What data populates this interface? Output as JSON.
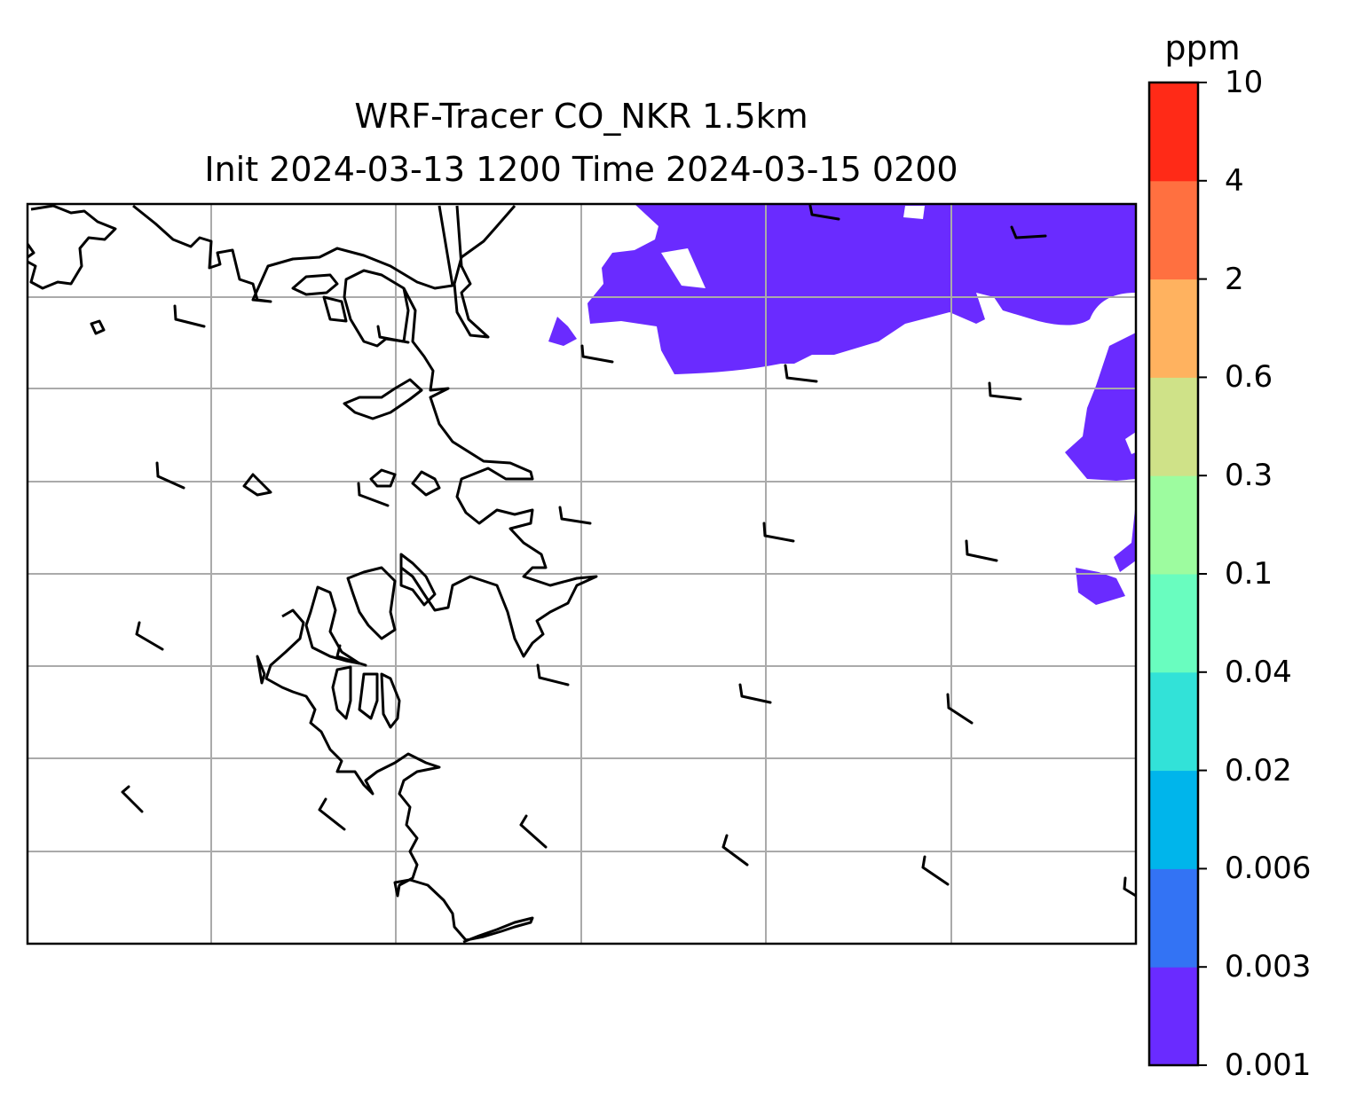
{
  "map": {
    "title_line1": "WRF-Tracer CO_NKR 1.5km",
    "title_line2": "Init 2024-03-13 1200 Time 2024-03-15 0200",
    "gridlines": true,
    "coastline_color": "#000000",
    "gridline_color": "#aaaaaa",
    "plume_color": "#6a2bff",
    "wind_barbs": true
  },
  "colorbar": {
    "unit": "ppm",
    "orientation": "vertical",
    "placement": "right",
    "levels": [
      "0.001",
      "0.003",
      "0.006",
      "0.02",
      "0.04",
      "0.1",
      "0.3",
      "0.6",
      "2",
      "4",
      "10"
    ],
    "colors": [
      "#6a2bff",
      "#3373f4",
      "#00b5eb",
      "#32e2d8",
      "#69fdbf",
      "#9dfc9f",
      "#cfe288",
      "#ffb25f",
      "#ff7040",
      "#ff2a17"
    ]
  }
}
